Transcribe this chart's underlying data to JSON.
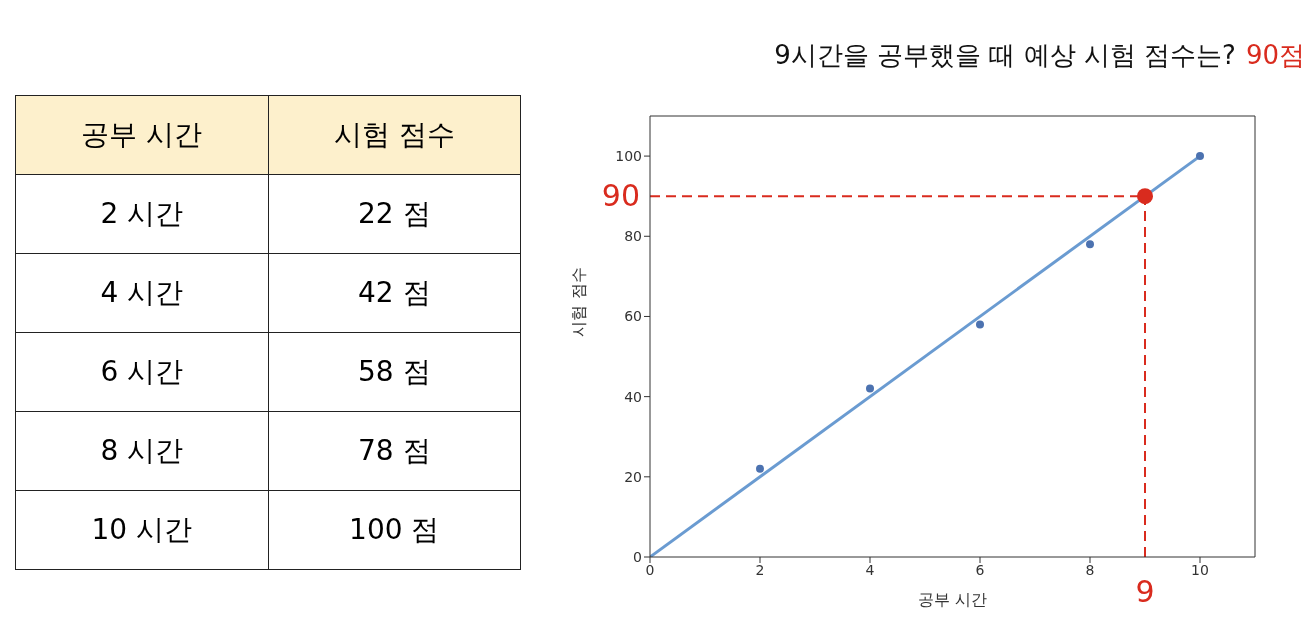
{
  "chart_data": {
    "type": "scatter",
    "title": "9시간을 공부했을 때 예상 시험 점수는?",
    "xlabel": "공부 시간",
    "ylabel": "시험 점수",
    "annotations": [
      "90점",
      "2 시간",
      "22 점",
      "4 시간",
      "42 점",
      "6 시간",
      "58 점",
      "8 시간",
      "78 점",
      "10 시간",
      "100 점"
    ],
    "series": [
      {
        "color": "#4c72b0",
        "x": [
          2,
          4,
          6,
          8,
          10
        ],
        "values": [
          22,
          42,
          58,
          78,
          100
        ]
      },
      {
        "type": "line",
        "color": "#6a9bd1",
        "x": [
          0,
          10
        ],
        "values": [
          0,
          100
        ],
        "marker": "none"
      },
      {
        "color": "#d92b1e",
        "x": [
          9
        ],
        "values": [
          90
        ]
      }
    ],
    "ref_lines": [
      {
        "axis": "y",
        "value": 90,
        "label": "90",
        "color": "#d92b1e",
        "line_style": "dashed"
      },
      {
        "axis": "x",
        "value": 9,
        "label": "9",
        "color": "#d92b1e",
        "line_style": "dashed"
      }
    ],
    "xlim": [
      0,
      11
    ],
    "xticks": [
      0,
      2,
      4,
      6,
      8,
      10
    ],
    "ylim": [
      0,
      110
    ],
    "yticks": [
      0,
      20,
      40,
      60,
      80,
      100
    ],
    "marker": "circle",
    "line_style": "solid",
    "grid": false
  }
}
